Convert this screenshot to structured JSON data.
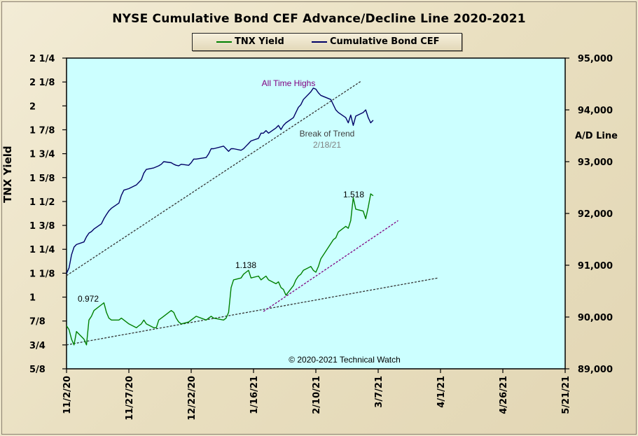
{
  "chart_data": {
    "type": "line",
    "title": "NYSE Cumulative  Bond CEF Advance/Decline  Line 2020-2021",
    "legend": {
      "placement": "top-center",
      "entries": [
        "TNX Yield",
        "Cumulative Bond CEF"
      ]
    },
    "colors": {
      "plot_bg": "#ccffff",
      "tnx": "#008000",
      "cef": "#000066",
      "trend": "#333333",
      "trend_purple": "#800080",
      "ann_purple": "#800080",
      "ann_trend": "#404040"
    },
    "x_axis": {
      "type": "date",
      "range": [
        "2020-11-02",
        "2021-05-21"
      ],
      "ticks": [
        "11/2/20",
        "11/27/20",
        "12/22/20",
        "1/16/21",
        "2/10/21",
        "3/7/21",
        "4/1/21",
        "4/26/21",
        "5/21/21"
      ]
    },
    "y_left": {
      "label": "TNX Yield",
      "range": [
        0.625,
        2.25
      ],
      "ticks": [
        {
          "v": 2.25,
          "t": "2 1/4"
        },
        {
          "v": 2.125,
          "t": "2 1/8"
        },
        {
          "v": 2.0,
          "t": "2"
        },
        {
          "v": 1.875,
          "t": "1 7/8"
        },
        {
          "v": 1.75,
          "t": "1 3/4"
        },
        {
          "v": 1.625,
          "t": "1 5/8"
        },
        {
          "v": 1.5,
          "t": "1 1/2"
        },
        {
          "v": 1.375,
          "t": "1 3/8"
        },
        {
          "v": 1.25,
          "t": "1 1/4"
        },
        {
          "v": 1.125,
          "t": "1 1/8"
        },
        {
          "v": 1.0,
          "t": "1"
        },
        {
          "v": 0.875,
          "t": "7/8"
        },
        {
          "v": 0.75,
          "t": "3/4"
        },
        {
          "v": 0.625,
          "t": "5/8"
        }
      ]
    },
    "y_right": {
      "label": "A/D Line",
      "range": [
        89000,
        95000
      ],
      "ticks": [
        {
          "v": 95000,
          "t": "95,000"
        },
        {
          "v": 94000,
          "t": "94,000"
        },
        {
          "v": 93000,
          "t": "93,000"
        },
        {
          "v": 92000,
          "t": "92,000"
        },
        {
          "v": 91000,
          "t": "91,000"
        },
        {
          "v": 90000,
          "t": "90,000"
        },
        {
          "v": 89000,
          "t": "89,000"
        }
      ]
    },
    "series": [
      {
        "name": "TNX Yield",
        "axis": "left",
        "points": [
          [
            "2020-11-02",
            0.85
          ],
          [
            "2020-11-03",
            0.83
          ],
          [
            "2020-11-04",
            0.78
          ],
          [
            "2020-11-05",
            0.75
          ],
          [
            "2020-11-06",
            0.82
          ],
          [
            "2020-11-09",
            0.78
          ],
          [
            "2020-11-10",
            0.75
          ],
          [
            "2020-11-11",
            0.88
          ],
          [
            "2020-11-12",
            0.9
          ],
          [
            "2020-11-13",
            0.93
          ],
          [
            "2020-11-16",
            0.96
          ],
          [
            "2020-11-17",
            0.97
          ],
          [
            "2020-11-18",
            0.92
          ],
          [
            "2020-11-19",
            0.89
          ],
          [
            "2020-11-20",
            0.88
          ],
          [
            "2020-11-23",
            0.88
          ],
          [
            "2020-11-24",
            0.89
          ],
          [
            "2020-11-25",
            0.88
          ],
          [
            "2020-11-27",
            0.86
          ],
          [
            "2020-11-30",
            0.84
          ],
          [
            "2020-12-01",
            0.85
          ],
          [
            "2020-12-02",
            0.86
          ],
          [
            "2020-12-03",
            0.88
          ],
          [
            "2020-12-04",
            0.86
          ],
          [
            "2020-12-07",
            0.84
          ],
          [
            "2020-12-08",
            0.84
          ],
          [
            "2020-12-09",
            0.88
          ],
          [
            "2020-12-10",
            0.89
          ],
          [
            "2020-12-11",
            0.9
          ],
          [
            "2020-12-14",
            0.93
          ],
          [
            "2020-12-15",
            0.92
          ],
          [
            "2020-12-16",
            0.89
          ],
          [
            "2020-12-17",
            0.87
          ],
          [
            "2020-12-18",
            0.86
          ],
          [
            "2020-12-21",
            0.87
          ],
          [
            "2020-12-22",
            0.88
          ],
          [
            "2020-12-23",
            0.89
          ],
          [
            "2020-12-24",
            0.9
          ],
          [
            "2020-12-28",
            0.88
          ],
          [
            "2020-12-29",
            0.89
          ],
          [
            "2020-12-30",
            0.9
          ],
          [
            "2020-12-31",
            0.89
          ],
          [
            "2021-01-04",
            0.88
          ],
          [
            "2021-01-05",
            0.89
          ],
          [
            "2021-01-06",
            0.92
          ],
          [
            "2021-01-07",
            1.05
          ],
          [
            "2021-01-08",
            1.09
          ],
          [
            "2021-01-11",
            1.1
          ],
          [
            "2021-01-12",
            1.12
          ],
          [
            "2021-01-13",
            1.13
          ],
          [
            "2021-01-14",
            1.14
          ],
          [
            "2021-01-15",
            1.1
          ],
          [
            "2021-01-18",
            1.11
          ],
          [
            "2021-01-19",
            1.09
          ],
          [
            "2021-01-20",
            1.1
          ],
          [
            "2021-01-21",
            1.11
          ],
          [
            "2021-01-22",
            1.09
          ],
          [
            "2021-01-25",
            1.07
          ],
          [
            "2021-01-26",
            1.08
          ],
          [
            "2021-01-27",
            1.05
          ],
          [
            "2021-01-28",
            1.04
          ],
          [
            "2021-01-29",
            1.01
          ],
          [
            "2021-02-01",
            1.06
          ],
          [
            "2021-02-02",
            1.09
          ],
          [
            "2021-02-03",
            1.11
          ],
          [
            "2021-02-04",
            1.12
          ],
          [
            "2021-02-05",
            1.14
          ],
          [
            "2021-02-08",
            1.16
          ],
          [
            "2021-02-09",
            1.14
          ],
          [
            "2021-02-10",
            1.13
          ],
          [
            "2021-02-11",
            1.16
          ],
          [
            "2021-02-12",
            1.2
          ],
          [
            "2021-02-16",
            1.28
          ],
          [
            "2021-02-17",
            1.3
          ],
          [
            "2021-02-18",
            1.31
          ],
          [
            "2021-02-19",
            1.34
          ],
          [
            "2021-02-22",
            1.37
          ],
          [
            "2021-02-23",
            1.36
          ],
          [
            "2021-02-24",
            1.4
          ],
          [
            "2021-02-25",
            1.52
          ],
          [
            "2021-02-26",
            1.46
          ],
          [
            "2021-03-01",
            1.45
          ],
          [
            "2021-03-02",
            1.41
          ],
          [
            "2021-03-03",
            1.47
          ],
          [
            "2021-03-04",
            1.54
          ],
          [
            "2021-03-05",
            1.53
          ]
        ]
      },
      {
        "name": "Cumulative Bond CEF",
        "axis": "right",
        "points": [
          [
            "2020-11-02",
            90.84
          ],
          [
            "2020-11-03",
            90.95
          ],
          [
            "2020-11-04",
            91.2
          ],
          [
            "2020-11-05",
            91.35
          ],
          [
            "2020-11-06",
            91.4
          ],
          [
            "2020-11-09",
            91.45
          ],
          [
            "2020-11-10",
            91.55
          ],
          [
            "2020-11-11",
            91.62
          ],
          [
            "2020-11-12",
            91.65
          ],
          [
            "2020-11-13",
            91.7
          ],
          [
            "2020-11-16",
            91.8
          ],
          [
            "2020-11-17",
            91.9
          ],
          [
            "2020-11-18",
            91.98
          ],
          [
            "2020-11-19",
            92.05
          ],
          [
            "2020-11-20",
            92.1
          ],
          [
            "2020-11-23",
            92.2
          ],
          [
            "2020-11-24",
            92.35
          ],
          [
            "2020-11-25",
            92.45
          ],
          [
            "2020-11-27",
            92.48
          ],
          [
            "2020-11-30",
            92.55
          ],
          [
            "2020-12-01",
            92.6
          ],
          [
            "2020-12-02",
            92.65
          ],
          [
            "2020-12-03",
            92.78
          ],
          [
            "2020-12-04",
            92.85
          ],
          [
            "2020-12-07",
            92.88
          ],
          [
            "2020-12-08",
            92.9
          ],
          [
            "2020-12-09",
            92.92
          ],
          [
            "2020-12-10",
            92.95
          ],
          [
            "2020-12-11",
            93.0
          ],
          [
            "2020-12-14",
            92.98
          ],
          [
            "2020-12-15",
            92.95
          ],
          [
            "2020-12-16",
            92.93
          ],
          [
            "2020-12-17",
            92.92
          ],
          [
            "2020-12-18",
            92.95
          ],
          [
            "2020-12-21",
            92.93
          ],
          [
            "2020-12-22",
            92.98
          ],
          [
            "2020-12-23",
            93.05
          ],
          [
            "2020-12-24",
            93.05
          ],
          [
            "2020-12-28",
            93.08
          ],
          [
            "2020-12-29",
            93.15
          ],
          [
            "2020-12-30",
            93.25
          ],
          [
            "2020-12-31",
            93.25
          ],
          [
            "2021-01-04",
            93.3
          ],
          [
            "2021-01-05",
            93.25
          ],
          [
            "2021-01-06",
            93.2
          ],
          [
            "2021-01-07",
            93.25
          ],
          [
            "2021-01-08",
            93.25
          ],
          [
            "2021-01-11",
            93.22
          ],
          [
            "2021-01-12",
            93.25
          ],
          [
            "2021-01-13",
            93.3
          ],
          [
            "2021-01-14",
            93.35
          ],
          [
            "2021-01-15",
            93.4
          ],
          [
            "2021-01-18",
            93.45
          ],
          [
            "2021-01-19",
            93.55
          ],
          [
            "2021-01-20",
            93.55
          ],
          [
            "2021-01-21",
            93.6
          ],
          [
            "2021-01-22",
            93.55
          ],
          [
            "2021-01-25",
            93.65
          ],
          [
            "2021-01-26",
            93.7
          ],
          [
            "2021-01-27",
            93.62
          ],
          [
            "2021-01-28",
            93.7
          ],
          [
            "2021-01-29",
            93.75
          ],
          [
            "2021-02-01",
            93.85
          ],
          [
            "2021-02-02",
            93.95
          ],
          [
            "2021-02-03",
            94.05
          ],
          [
            "2021-02-04",
            94.1
          ],
          [
            "2021-02-05",
            94.2
          ],
          [
            "2021-02-08",
            94.35
          ],
          [
            "2021-02-09",
            94.42
          ],
          [
            "2021-02-10",
            94.4
          ],
          [
            "2021-02-11",
            94.33
          ],
          [
            "2021-02-12",
            94.28
          ],
          [
            "2021-02-16",
            94.2
          ],
          [
            "2021-02-17",
            94.1
          ],
          [
            "2021-02-18",
            94.0
          ],
          [
            "2021-02-19",
            93.95
          ],
          [
            "2021-02-22",
            93.85
          ],
          [
            "2021-02-23",
            93.75
          ],
          [
            "2021-02-24",
            93.9
          ],
          [
            "2021-02-25",
            93.7
          ],
          [
            "2021-02-26",
            93.88
          ],
          [
            "2021-03-01",
            93.95
          ],
          [
            "2021-03-02",
            94.0
          ],
          [
            "2021-03-03",
            93.85
          ],
          [
            "2021-03-04",
            93.75
          ],
          [
            "2021-03-05",
            93.8
          ]
        ]
      }
    ],
    "trendlines": [
      {
        "axis": "right",
        "color": "trend",
        "from": [
          "2020-11-02",
          90.8
        ],
        "to": [
          "2021-02-28",
          94.55
        ]
      },
      {
        "axis": "left",
        "color": "trend",
        "from": [
          "2020-11-02",
          0.75
        ],
        "to": [
          "2021-03-31",
          1.1
        ]
      },
      {
        "axis": "left",
        "color": "trend_purple",
        "from": [
          "2021-01-20",
          0.925
        ],
        "to": [
          "2021-03-15",
          1.4
        ]
      }
    ],
    "annotations": [
      {
        "id": "ann-0972",
        "text": "0.972",
        "color": "#000000"
      },
      {
        "id": "ann-1138",
        "text": "1.138",
        "color": "#000000"
      },
      {
        "id": "ann-1518",
        "text": "1.518",
        "color": "#000000"
      },
      {
        "id": "ann-ath",
        "text": "All Time  Highs",
        "color": "ann_purple"
      },
      {
        "id": "ann-break",
        "text": "Break of Trend",
        "color": "ann_trend"
      },
      {
        "id": "ann-date",
        "text": "2/18/21",
        "color": "#808080"
      },
      {
        "id": "ann-copyright",
        "text": "© 2020-2021  Technical Watch",
        "color": "#000000"
      }
    ],
    "grid": false
  }
}
